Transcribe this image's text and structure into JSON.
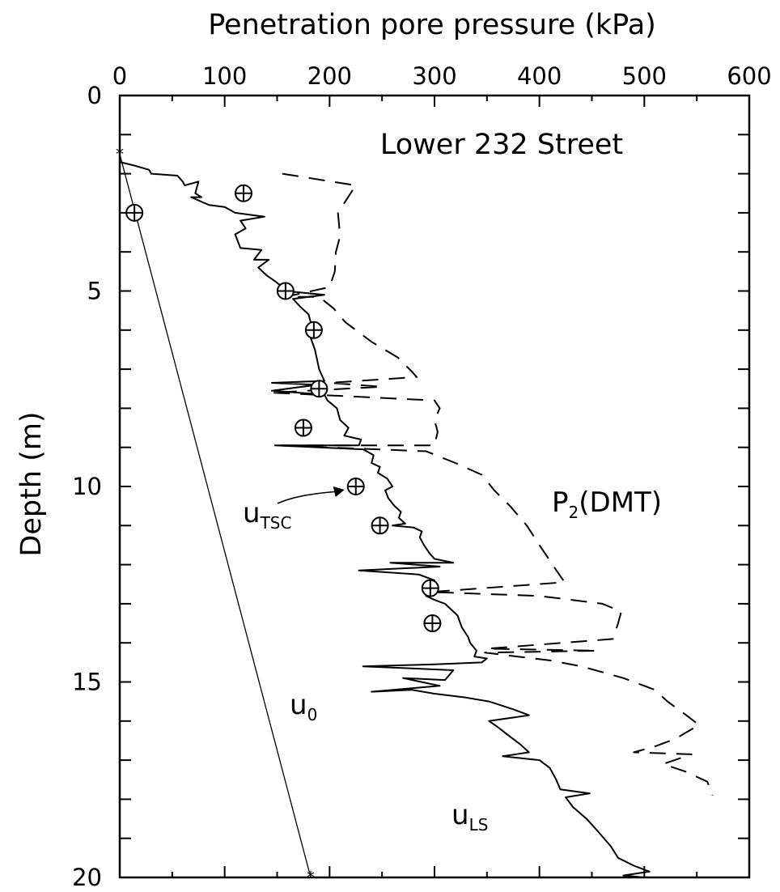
{
  "chart_data": {
    "type": "line",
    "title": "Lower 232 Street",
    "xlabel": "Penetration pore pressure (kPa)",
    "ylabel": "Depth (m)",
    "xlim": [
      0,
      600
    ],
    "ylim": [
      20,
      0
    ],
    "x_axis_position": "top",
    "y_inverted": true,
    "x_ticks": [
      0,
      100,
      200,
      300,
      400,
      500,
      600
    ],
    "y_ticks": [
      0,
      5,
      10,
      15,
      20
    ],
    "grid": false,
    "legend": "none",
    "series": [
      {
        "name": "u0",
        "label_main": "u",
        "label_sub": "0",
        "style": "thin-solid",
        "points": [
          [
            0,
            1.5
          ],
          [
            182,
            20
          ]
        ]
      },
      {
        "name": "uLS",
        "label_main": "u",
        "label_sub": "LS",
        "style": "solid",
        "points": [
          [
            0,
            1.7
          ],
          [
            15,
            1.8
          ],
          [
            28,
            1.9
          ],
          [
            30,
            2.0
          ],
          [
            55,
            2.05
          ],
          [
            60,
            2.2
          ],
          [
            62,
            2.3
          ],
          [
            75,
            2.2
          ],
          [
            72,
            2.5
          ],
          [
            78,
            2.6
          ],
          [
            68,
            2.6
          ],
          [
            85,
            2.8
          ],
          [
            100,
            2.85
          ],
          [
            110,
            3.0
          ],
          [
            138,
            3.1
          ],
          [
            115,
            3.2
          ],
          [
            120,
            3.4
          ],
          [
            110,
            3.55
          ],
          [
            115,
            3.9
          ],
          [
            135,
            3.95
          ],
          [
            128,
            4.2
          ],
          [
            142,
            4.2
          ],
          [
            132,
            4.4
          ],
          [
            140,
            4.6
          ],
          [
            148,
            4.75
          ],
          [
            155,
            4.9
          ],
          [
            158,
            5.0
          ],
          [
            195,
            5.1
          ],
          [
            165,
            5.2
          ],
          [
            172,
            5.4
          ],
          [
            180,
            5.6
          ],
          [
            183,
            5.9
          ],
          [
            185,
            6.0
          ],
          [
            182,
            6.2
          ],
          [
            186,
            6.5
          ],
          [
            190,
            7.0
          ],
          [
            195,
            7.3
          ],
          [
            145,
            7.35
          ],
          [
            188,
            7.4
          ],
          [
            145,
            7.55
          ],
          [
            195,
            7.65
          ],
          [
            198,
            7.8
          ],
          [
            207,
            8.0
          ],
          [
            210,
            8.3
          ],
          [
            218,
            8.5
          ],
          [
            214,
            8.7
          ],
          [
            230,
            8.8
          ],
          [
            228,
            8.95
          ],
          [
            148,
            8.95
          ],
          [
            232,
            9.05
          ],
          [
            242,
            9.2
          ],
          [
            240,
            9.4
          ],
          [
            248,
            9.5
          ],
          [
            246,
            9.65
          ],
          [
            255,
            9.8
          ],
          [
            260,
            10.0
          ],
          [
            253,
            10.1
          ],
          [
            256,
            10.3
          ],
          [
            262,
            10.5
          ],
          [
            268,
            10.65
          ],
          [
            266,
            10.8
          ],
          [
            272,
            10.95
          ],
          [
            260,
            11.0
          ],
          [
            280,
            11.05
          ],
          [
            288,
            11.15
          ],
          [
            286,
            11.3
          ],
          [
            290,
            11.5
          ],
          [
            295,
            11.7
          ],
          [
            300,
            11.85
          ],
          [
            318,
            11.95
          ],
          [
            258,
            11.95
          ],
          [
            305,
            12.05
          ],
          [
            228,
            12.15
          ],
          [
            285,
            12.25
          ],
          [
            300,
            12.4
          ],
          [
            298,
            12.6
          ],
          [
            292,
            12.8
          ],
          [
            300,
            12.9
          ],
          [
            310,
            13.0
          ],
          [
            322,
            13.3
          ],
          [
            326,
            13.6
          ],
          [
            332,
            13.85
          ],
          [
            334,
            14.0
          ],
          [
            340,
            14.2
          ],
          [
            338,
            14.35
          ],
          [
            350,
            14.4
          ],
          [
            345,
            14.5
          ],
          [
            300,
            14.55
          ],
          [
            232,
            14.6
          ],
          [
            318,
            14.7
          ],
          [
            310,
            14.95
          ],
          [
            270,
            14.9
          ],
          [
            305,
            15.1
          ],
          [
            240,
            15.25
          ],
          [
            278,
            15.2
          ],
          [
            300,
            15.3
          ],
          [
            330,
            15.4
          ],
          [
            352,
            15.5
          ],
          [
            375,
            15.7
          ],
          [
            390,
            15.85
          ],
          [
            352,
            16.0
          ],
          [
            360,
            16.15
          ],
          [
            372,
            16.4
          ],
          [
            382,
            16.6
          ],
          [
            390,
            16.8
          ],
          [
            365,
            16.9
          ],
          [
            400,
            17.0
          ],
          [
            410,
            17.2
          ],
          [
            416,
            17.5
          ],
          [
            420,
            17.75
          ],
          [
            448,
            17.85
          ],
          [
            425,
            17.95
          ],
          [
            432,
            18.2
          ],
          [
            445,
            18.5
          ],
          [
            455,
            18.8
          ],
          [
            468,
            19.2
          ],
          [
            475,
            19.5
          ],
          [
            490,
            19.7
          ],
          [
            505,
            19.85
          ],
          [
            480,
            19.95
          ],
          [
            500,
            20.0
          ]
        ]
      },
      {
        "name": "P2(DMT)",
        "label_main": "P",
        "label_sub": "2",
        "label_suffix": "(DMT)",
        "style": "dashed",
        "points": [
          [
            155,
            2.0
          ],
          [
            225,
            2.3
          ],
          [
            220,
            2.5
          ],
          [
            208,
            3.0
          ],
          [
            210,
            3.6
          ],
          [
            206,
            4.0
          ],
          [
            205,
            4.5
          ],
          [
            200,
            4.9
          ],
          [
            158,
            5.15
          ],
          [
            190,
            5.15
          ],
          [
            204,
            5.45
          ],
          [
            215,
            5.8
          ],
          [
            225,
            6.0
          ],
          [
            240,
            6.3
          ],
          [
            265,
            6.7
          ],
          [
            278,
            7.05
          ],
          [
            283,
            7.2
          ],
          [
            200,
            7.35
          ],
          [
            250,
            7.45
          ],
          [
            145,
            7.6
          ],
          [
            300,
            7.8
          ],
          [
            305,
            8.0
          ],
          [
            300,
            8.3
          ],
          [
            303,
            8.6
          ],
          [
            300,
            8.95
          ],
          [
            150,
            8.95
          ],
          [
            292,
            9.1
          ],
          [
            320,
            9.4
          ],
          [
            345,
            9.7
          ],
          [
            357,
            10.1
          ],
          [
            372,
            10.5
          ],
          [
            388,
            11.0
          ],
          [
            400,
            11.5
          ],
          [
            415,
            12.1
          ],
          [
            424,
            12.45
          ],
          [
            296,
            12.7
          ],
          [
            400,
            12.8
          ],
          [
            460,
            13.0
          ],
          [
            478,
            13.2
          ],
          [
            475,
            13.5
          ],
          [
            470,
            13.9
          ],
          [
            350,
            14.15
          ],
          [
            455,
            14.2
          ],
          [
            348,
            14.25
          ],
          [
            410,
            14.45
          ],
          [
            440,
            14.6
          ],
          [
            480,
            14.9
          ],
          [
            510,
            15.2
          ],
          [
            522,
            15.5
          ],
          [
            540,
            15.85
          ],
          [
            552,
            16.1
          ],
          [
            530,
            16.45
          ],
          [
            510,
            16.65
          ],
          [
            490,
            16.8
          ],
          [
            545,
            16.85
          ],
          [
            518,
            17.1
          ],
          [
            540,
            17.3
          ],
          [
            560,
            17.55
          ],
          [
            565,
            17.9
          ]
        ]
      }
    ],
    "markers": {
      "name": "uTSC",
      "label_main": "u",
      "label_sub": "TSC",
      "symbol": "circled-plus",
      "points": [
        [
          118,
          2.5
        ],
        [
          14,
          3.0
        ],
        [
          158,
          5.0
        ],
        [
          185,
          6.0
        ],
        [
          190,
          7.5
        ],
        [
          175,
          8.5
        ],
        [
          225,
          10.0
        ],
        [
          248,
          11.0
        ],
        [
          296,
          12.6
        ],
        [
          298,
          13.5
        ]
      ]
    }
  }
}
